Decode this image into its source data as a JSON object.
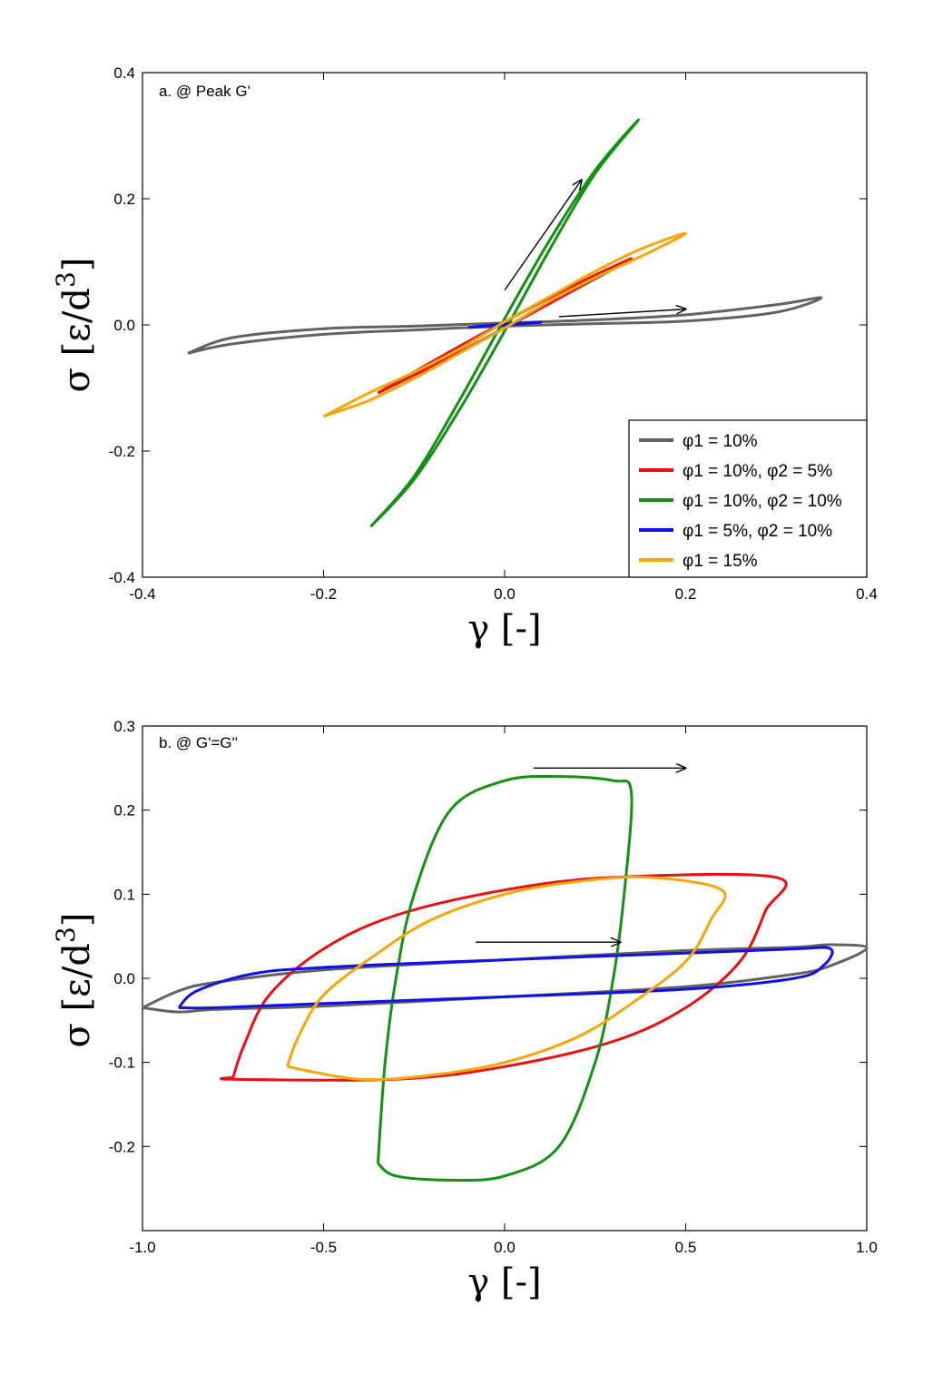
{
  "chart_data": [
    {
      "type": "line",
      "panel_label": "a. @ Peak G'",
      "xlabel": "γ [-]",
      "ylabel_main": "σ [ε/d",
      "ylabel_exp": "3",
      "ylabel_close": "]",
      "xlim": [
        -0.4,
        0.4
      ],
      "ylim": [
        -0.4,
        0.4
      ],
      "xticks": [
        "-0.4",
        "-0.2",
        "0.0",
        "0.2",
        "0.4"
      ],
      "yticks": [
        "-0.4",
        "-0.2",
        "0.0",
        "0.2",
        "0.4"
      ],
      "legend_position": "bottom-right",
      "series": [
        {
          "name": "φ1 = 10%",
          "color": "#666060",
          "x": [
            -0.35,
            -0.3,
            -0.2,
            -0.1,
            0.0,
            0.1,
            0.2,
            0.3,
            0.35,
            0.3,
            0.2,
            0.1,
            0.0,
            -0.1,
            -0.2,
            -0.3,
            -0.35
          ],
          "y": [
            -0.045,
            -0.03,
            -0.015,
            -0.008,
            -0.002,
            0.002,
            0.006,
            0.02,
            0.043,
            0.032,
            0.016,
            0.008,
            0.003,
            -0.002,
            -0.006,
            -0.02,
            -0.045
          ]
        },
        {
          "name": "φ1 = 10%, φ2 = 5%",
          "color": "#e81010",
          "x": [
            -0.14,
            -0.07,
            0.0,
            0.07,
            0.14,
            0.07,
            0.0,
            -0.07,
            -0.14
          ],
          "y": [
            -0.108,
            -0.058,
            -0.005,
            0.05,
            0.105,
            0.058,
            0.005,
            -0.05,
            -0.108
          ]
        },
        {
          "name": "φ1 = 10%, φ2 = 10%",
          "color": "#149114",
          "x": [
            -0.148,
            -0.1,
            -0.05,
            0.0,
            0.05,
            0.1,
            0.148,
            0.1,
            0.05,
            0.0,
            -0.05,
            -0.1,
            -0.148
          ],
          "y": [
            -0.32,
            -0.245,
            -0.135,
            -0.01,
            0.12,
            0.24,
            0.325,
            0.245,
            0.135,
            0.01,
            -0.12,
            -0.24,
            -0.32
          ]
        },
        {
          "name": "φ1 = 5%, φ2 = 10%",
          "color": "#1010e8",
          "x": [
            -0.04,
            0.0,
            0.04,
            0.0,
            -0.04
          ],
          "y": [
            -0.004,
            0.0,
            0.004,
            0.001,
            -0.004
          ]
        },
        {
          "name": "φ1 = 15%",
          "color": "#f7a50c",
          "x": [
            -0.2,
            -0.15,
            -0.1,
            -0.05,
            0.0,
            0.05,
            0.1,
            0.15,
            0.2,
            0.15,
            0.1,
            0.05,
            0.0,
            -0.05,
            -0.1,
            -0.15,
            -0.2
          ],
          "y": [
            -0.145,
            -0.12,
            -0.085,
            -0.045,
            -0.005,
            0.038,
            0.075,
            0.108,
            0.145,
            0.12,
            0.085,
            0.045,
            0.005,
            -0.038,
            -0.075,
            -0.108,
            -0.145
          ]
        }
      ],
      "arrows": [
        {
          "from": [
            0.0,
            0.055
          ],
          "to": [
            0.085,
            0.23
          ]
        },
        {
          "from": [
            0.06,
            0.013
          ],
          "to": [
            0.2,
            0.025
          ]
        }
      ]
    },
    {
      "type": "line",
      "panel_label": "b. @ G'=G''",
      "xlabel": "γ [-]",
      "ylabel_main": "σ [ε/d",
      "ylabel_exp": "3",
      "ylabel_close": "]",
      "xlim": [
        -1.0,
        1.0
      ],
      "ylim": [
        -0.3,
        0.3
      ],
      "xticks": [
        "-1.0",
        "-0.5",
        "0.0",
        "0.5",
        "1.0"
      ],
      "yticks": [
        "0.3",
        "0.2",
        "0.1",
        "0.0",
        "-0.1",
        "-0.2"
      ],
      "series": [
        {
          "name": "φ1 = 10%",
          "color": "#666060",
          "x": [
            -1.0,
            -0.9,
            -0.8,
            -0.5,
            0.0,
            0.5,
            0.8,
            0.9,
            1.0,
            0.9,
            0.8,
            0.5,
            0.0,
            -0.5,
            -0.8,
            -0.9,
            -1.0
          ],
          "y": [
            -0.035,
            -0.015,
            -0.005,
            0.01,
            0.022,
            0.033,
            0.037,
            0.04,
            0.036,
            0.015,
            0.005,
            -0.01,
            -0.022,
            -0.033,
            -0.037,
            -0.04,
            -0.035
          ]
        },
        {
          "name": "φ1 = 10%, φ2 = 5%",
          "color": "#e81010",
          "x": [
            -0.75,
            -0.72,
            -0.65,
            -0.5,
            -0.3,
            0.0,
            0.3,
            0.75,
            0.72,
            0.65,
            0.5,
            0.3,
            0.0,
            -0.3,
            -0.75,
            -0.75
          ],
          "y": [
            -0.118,
            -0.08,
            -0.02,
            0.035,
            0.075,
            0.105,
            0.12,
            0.12,
            0.08,
            0.02,
            -0.035,
            -0.075,
            -0.105,
            -0.12,
            -0.12,
            -0.118
          ]
        },
        {
          "name": "φ1 = 10%, φ2 = 10%",
          "color": "#149114",
          "x": [
            -0.35,
            -0.33,
            -0.3,
            -0.25,
            -0.15,
            0.0,
            0.15,
            0.3,
            0.35,
            0.33,
            0.3,
            0.25,
            0.15,
            0.0,
            -0.15,
            -0.3,
            -0.35
          ],
          "y": [
            -0.22,
            -0.1,
            0.0,
            0.1,
            0.2,
            0.235,
            0.24,
            0.235,
            0.22,
            0.1,
            0.0,
            -0.1,
            -0.2,
            -0.235,
            -0.24,
            -0.235,
            -0.22
          ]
        },
        {
          "name": "φ1 = 5%, φ2 = 10%",
          "color": "#1010e8",
          "x": [
            -0.9,
            -0.85,
            -0.7,
            -0.5,
            0.0,
            0.5,
            0.8,
            0.9,
            0.88,
            0.8,
            0.5,
            0.0,
            -0.5,
            -0.8,
            -0.9
          ],
          "y": [
            -0.035,
            -0.015,
            0.005,
            0.013,
            0.022,
            0.03,
            0.035,
            0.035,
            0.015,
            0.0,
            -0.013,
            -0.022,
            -0.03,
            -0.035,
            -0.035
          ]
        },
        {
          "name": "φ1 = 15%",
          "color": "#f7a50c",
          "x": [
            -0.6,
            -0.57,
            -0.5,
            -0.35,
            -0.2,
            0.0,
            0.2,
            0.4,
            0.6,
            0.57,
            0.5,
            0.35,
            0.2,
            0.0,
            -0.2,
            -0.4,
            -0.6
          ],
          "y": [
            -0.105,
            -0.07,
            -0.02,
            0.03,
            0.07,
            0.1,
            0.115,
            0.12,
            0.105,
            0.07,
            0.02,
            -0.03,
            -0.07,
            -0.1,
            -0.115,
            -0.12,
            -0.105
          ]
        }
      ],
      "arrows": [
        {
          "from": [
            0.08,
            0.25
          ],
          "to": [
            0.5,
            0.25
          ]
        },
        {
          "from": [
            -0.08,
            0.043
          ],
          "to": [
            0.32,
            0.043
          ]
        }
      ]
    }
  ]
}
